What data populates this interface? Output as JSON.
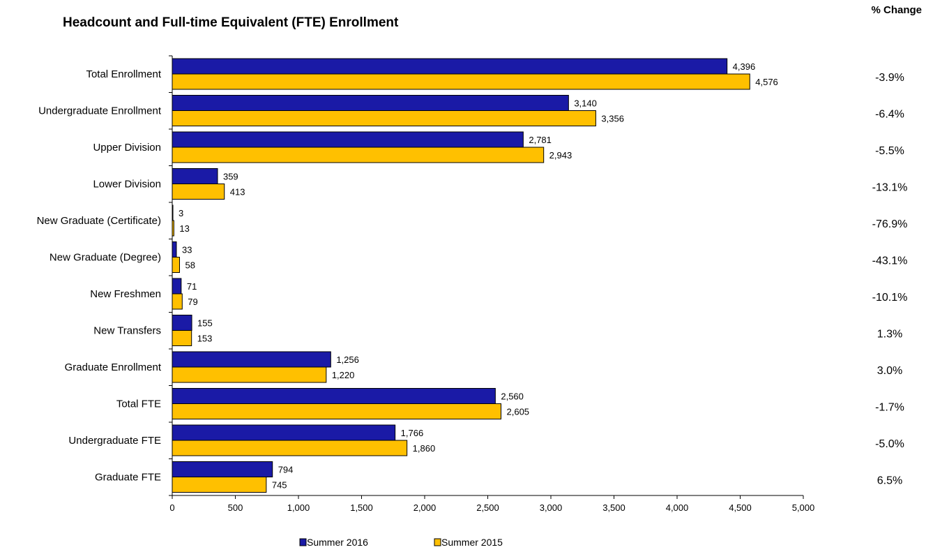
{
  "chart_data": {
    "type": "bar",
    "orientation": "horizontal",
    "title": "Headcount and Full-time Equivalent (FTE) Enrollment",
    "pct_change_header": "% Change",
    "categories": [
      "Total Enrollment",
      "Undergraduate Enrollment",
      "Upper Division",
      "Lower Division",
      "New Graduate (Certificate)",
      "New Graduate (Degree)",
      "New Freshmen",
      "New Transfers",
      "Graduate Enrollment",
      "Total FTE",
      "Undergraduate FTE",
      "Graduate FTE"
    ],
    "series": [
      {
        "name": "Summer 2016",
        "color": "#1a1aa6",
        "values": [
          4396,
          3140,
          2781,
          359,
          3,
          33,
          71,
          155,
          1256,
          2560,
          1766,
          794
        ],
        "labels": [
          "4,396",
          "3,140",
          "2,781",
          "359",
          "3",
          "33",
          "71",
          "155",
          "1,256",
          "2,560",
          "1,766",
          "794"
        ]
      },
      {
        "name": "Summer 2015",
        "color": "#ffc000",
        "values": [
          4576,
          3356,
          2943,
          413,
          13,
          58,
          79,
          153,
          1220,
          2605,
          1860,
          745
        ],
        "labels": [
          "4,576",
          "3,356",
          "2,943",
          "413",
          "13",
          "58",
          "79",
          "153",
          "1,220",
          "2,605",
          "1,860",
          "745"
        ]
      }
    ],
    "pct_change": [
      "-3.9%",
      "-6.4%",
      "-5.5%",
      "-13.1%",
      "-76.9%",
      "-43.1%",
      "-10.1%",
      "1.3%",
      "3.0%",
      "-1.7%",
      "-5.0%",
      "6.5%"
    ],
    "xlim": [
      0,
      5000
    ],
    "xticks": [
      0,
      500,
      1000,
      1500,
      2000,
      2500,
      3000,
      3500,
      4000,
      4500,
      5000
    ],
    "xtick_labels": [
      "0",
      "500",
      "1,000",
      "1,500",
      "2,000",
      "2,500",
      "3,000",
      "3,500",
      "4,000",
      "4,500",
      "5,000"
    ],
    "grid": false,
    "legend_position": "bottom"
  }
}
